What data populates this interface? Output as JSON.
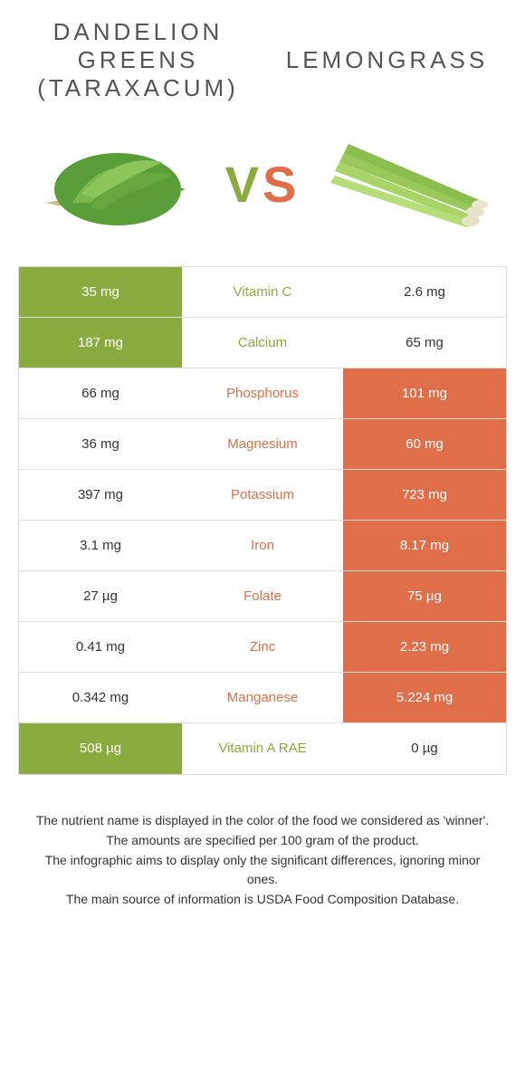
{
  "header": {
    "left_title_line1": "DANDELION",
    "left_title_line2": "GREENS",
    "left_title_line3": "(TARAXACUM)",
    "right_title": "LEMONGRASS",
    "vs_v": "V",
    "vs_s": "S"
  },
  "colors": {
    "green": "#8aab3e",
    "orange": "#e06e48",
    "white": "#ffffff",
    "text": "#333333"
  },
  "rows": [
    {
      "nutrient": "Vitamin C",
      "left": "35 mg",
      "right": "2.6 mg",
      "winner": "left"
    },
    {
      "nutrient": "Calcium",
      "left": "187 mg",
      "right": "65 mg",
      "winner": "left"
    },
    {
      "nutrient": "Phosphorus",
      "left": "66 mg",
      "right": "101 mg",
      "winner": "right"
    },
    {
      "nutrient": "Magnesium",
      "left": "36 mg",
      "right": "60 mg",
      "winner": "right"
    },
    {
      "nutrient": "Potassium",
      "left": "397 mg",
      "right": "723 mg",
      "winner": "right"
    },
    {
      "nutrient": "Iron",
      "left": "3.1 mg",
      "right": "8.17 mg",
      "winner": "right"
    },
    {
      "nutrient": "Folate",
      "left": "27 µg",
      "right": "75 µg",
      "winner": "right"
    },
    {
      "nutrient": "Zinc",
      "left": "0.41 mg",
      "right": "2.23 mg",
      "winner": "right"
    },
    {
      "nutrient": "Manganese",
      "left": "0.342 mg",
      "right": "5.224 mg",
      "winner": "right"
    },
    {
      "nutrient": "Vitamin A RAE",
      "left": "508 µg",
      "right": "0 µg",
      "winner": "left"
    }
  ],
  "footnotes": [
    "The nutrient name is displayed in the color of the food we considered as 'winner'.",
    "The amounts are specified per 100 gram of the product.",
    "The infographic aims to display only the significant differences, ignoring minor ones.",
    "The main source of information is USDA Food Composition Database."
  ]
}
